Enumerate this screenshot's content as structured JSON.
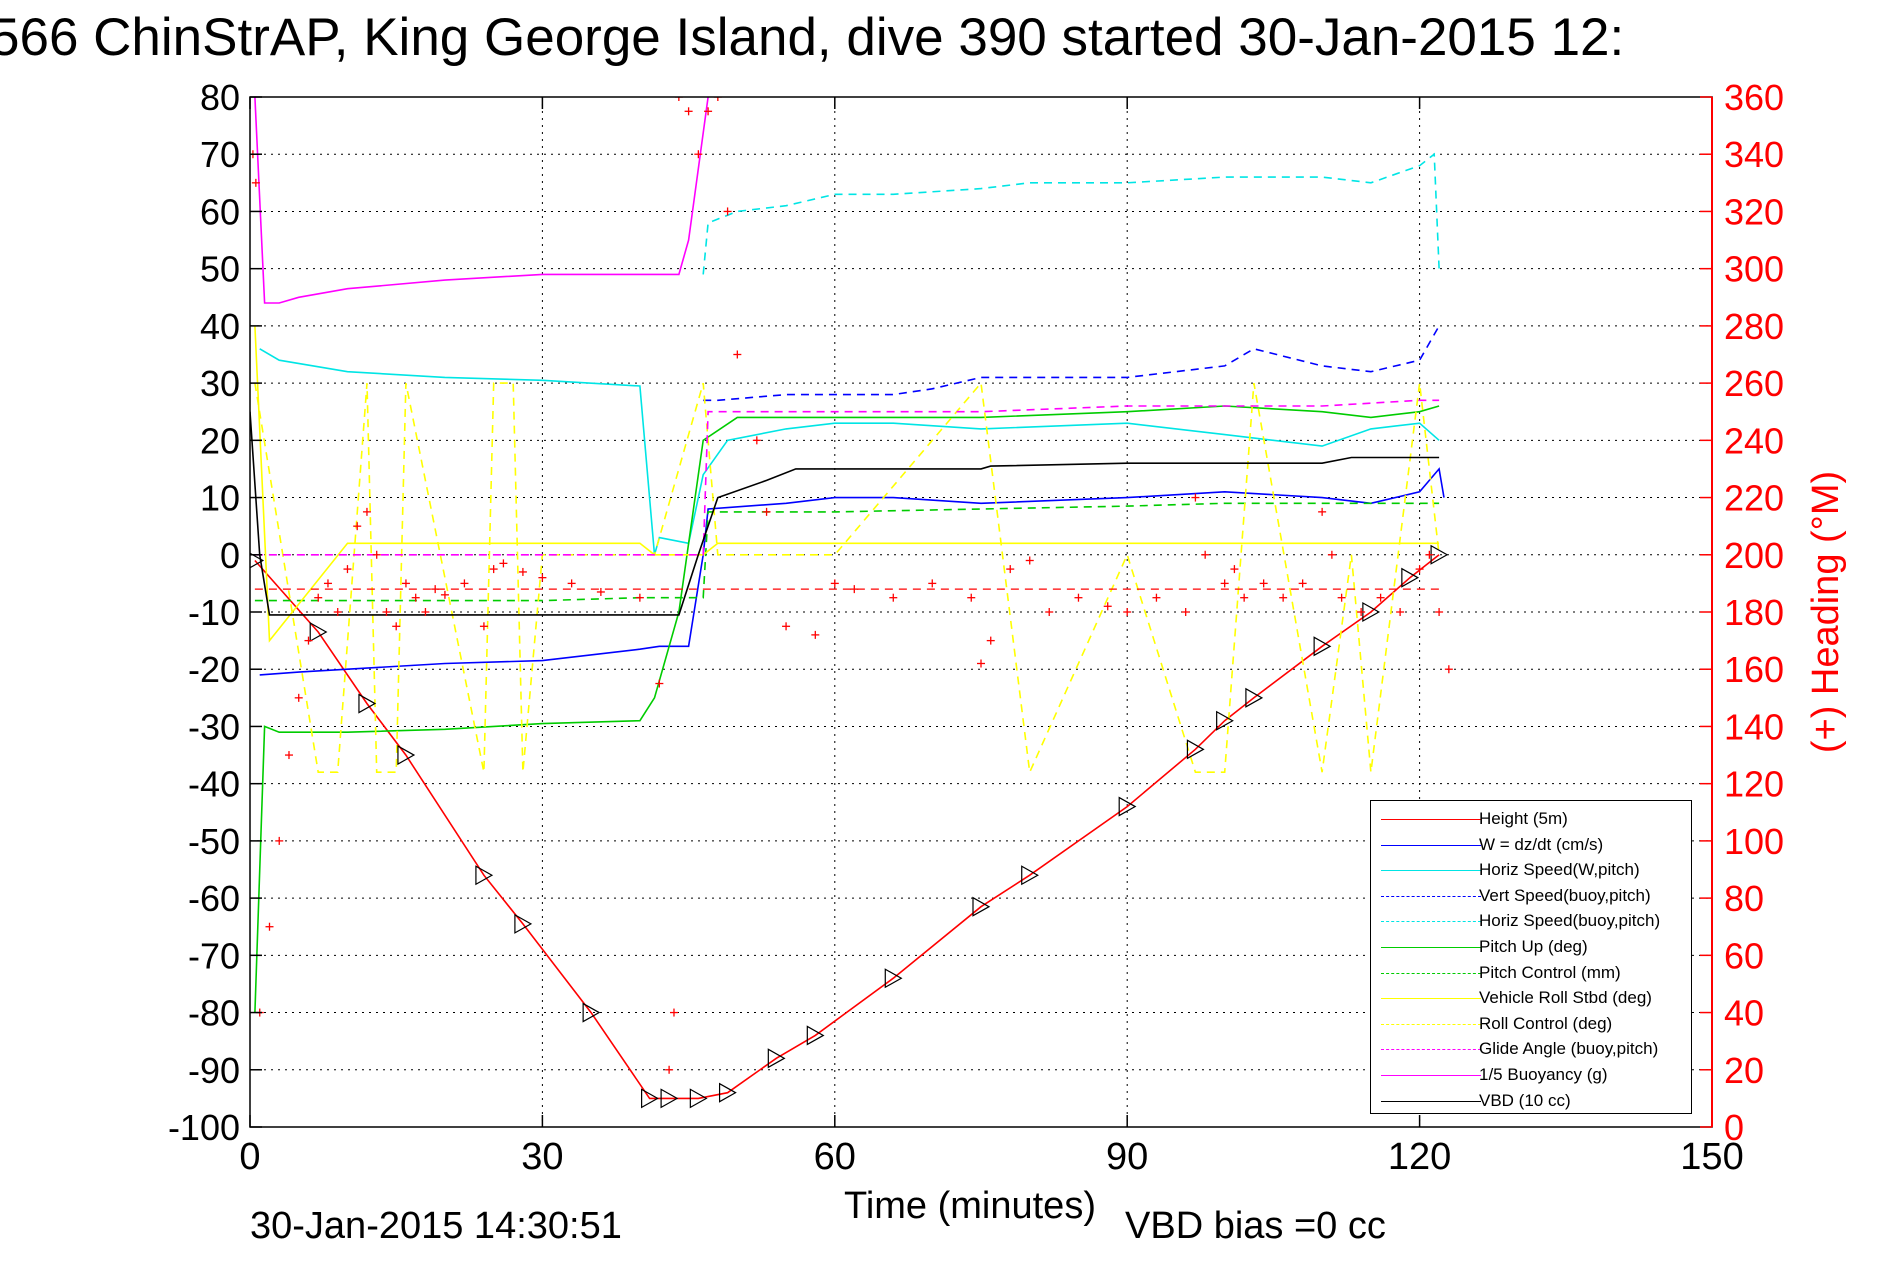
{
  "title": "566 ChinStrAP, King George Island, dive 390 started 30-Jan-2015 12:",
  "footer": {
    "timestamp": "30-Jan-2015 14:30:51",
    "vbd_bias": "VBD bias =0 cc"
  },
  "chart_data": {
    "type": "line",
    "title": "566 ChinStrAP, King George Island, dive 390 started 30-Jan-2015 12:",
    "xlabel": "Time (minutes)",
    "ylabel": "",
    "y2label": "(+) Heading (°M)",
    "xlim": [
      0,
      150
    ],
    "ylim": [
      -100,
      80
    ],
    "y2lim": [
      0,
      360
    ],
    "xticks": [
      0,
      30,
      60,
      90,
      120,
      150
    ],
    "yticks": [
      80,
      70,
      60,
      50,
      40,
      30,
      20,
      10,
      0,
      -10,
      -20,
      -30,
      -40,
      -50,
      -60,
      -70,
      -80,
      -90,
      -100
    ],
    "y2ticks": [
      360,
      340,
      320,
      300,
      280,
      260,
      240,
      220,
      200,
      180,
      160,
      140,
      120,
      100,
      80,
      60,
      40,
      20,
      0
    ],
    "grid": true,
    "legend_position": "bottom-right",
    "series": [
      {
        "name": "Height (5m)",
        "color": "#ff0000",
        "dash": "solid",
        "x": [
          0.5,
          7,
          12,
          16,
          24,
          28,
          35,
          41,
          43,
          46,
          49,
          54,
          58,
          66,
          75,
          80,
          90,
          97,
          100,
          103,
          110,
          115,
          119,
          122
        ],
        "y": [
          -1,
          -13.5,
          -26,
          -35,
          -56,
          -64.5,
          -80,
          -95,
          -95,
          -95,
          -94,
          -88,
          -84,
          -74,
          -61.5,
          -56,
          -44,
          -34,
          -29,
          -25,
          -16,
          -10,
          -4,
          0
        ]
      },
      {
        "name": "W = dz/dt (cm/s)",
        "color": "#0000ff",
        "dash": "solid",
        "x": [
          1,
          5,
          10,
          20,
          30,
          40,
          42,
          45,
          46.5,
          47,
          55,
          60,
          66,
          75,
          90,
          100,
          110,
          115,
          120,
          122,
          122.5
        ],
        "y": [
          -21,
          -20.5,
          -20,
          -19,
          -18.5,
          -16.5,
          -16,
          -16,
          0,
          8,
          9,
          10,
          10,
          9,
          10,
          11,
          10,
          9,
          11,
          15,
          10
        ]
      },
      {
        "name": "Horiz Speed(W,pitch)",
        "color": "#00e5e5",
        "dash": "solid",
        "x": [
          1,
          3,
          10,
          20,
          30,
          40,
          41.5,
          42,
          45,
          46.5,
          49,
          55,
          60,
          66,
          75,
          90,
          100,
          110,
          115,
          120,
          122
        ],
        "y": [
          36,
          34,
          32,
          31,
          30.5,
          29.5,
          0,
          3,
          2,
          14,
          20,
          22,
          23,
          23,
          22,
          23,
          21,
          19,
          22,
          23,
          20
        ]
      },
      {
        "name": "Vert Speed(buoy,pitch)",
        "color": "#0000ff",
        "dash": "dashed",
        "x": [
          46.5,
          48,
          55,
          60,
          66,
          70,
          75,
          80,
          90,
          100,
          103,
          110,
          115,
          120,
          122
        ],
        "y": [
          27,
          27,
          28,
          28,
          28,
          29,
          31,
          31,
          31,
          33,
          36,
          33,
          32,
          34,
          40
        ]
      },
      {
        "name": "Horiz Speed(buoy,pitch)",
        "color": "#00e5e5",
        "dash": "dashed",
        "x": [
          46.5,
          47,
          50,
          55,
          60,
          66,
          75,
          80,
          90,
          100,
          110,
          115,
          120,
          121.5,
          122
        ],
        "y": [
          49,
          58,
          60,
          61,
          63,
          63,
          64,
          65,
          65,
          66,
          66,
          65,
          68,
          70,
          50
        ]
      },
      {
        "name": "Pitch Up (deg)",
        "color": "#00cc00",
        "dash": "solid",
        "x": [
          0.5,
          1.5,
          3,
          10,
          20,
          30,
          40,
          41.5,
          44,
          46.5,
          50,
          55,
          60,
          66,
          75,
          90,
          100,
          110,
          115,
          120,
          122
        ],
        "y": [
          -80,
          -30,
          -31,
          -31,
          -30.5,
          -29.5,
          -29,
          -25,
          -10,
          20,
          24,
          24,
          24,
          24,
          24,
          25,
          26,
          25,
          24,
          25,
          26
        ]
      },
      {
        "name": "Pitch Control (mm)",
        "color": "#00cc00",
        "dash": "dashed",
        "x": [
          0.5,
          2,
          10,
          20,
          30,
          40,
          41.5,
          46.5,
          47,
          60,
          75,
          90,
          100,
          110,
          120,
          122
        ],
        "y": [
          -8,
          -8,
          -8,
          -8,
          -8,
          -7.5,
          -7.5,
          -7.5,
          7.5,
          7.5,
          8,
          8.5,
          9,
          9,
          9,
          9
        ]
      },
      {
        "name": "Vehicle Roll Stbd (deg)",
        "color": "#ffff00",
        "dash": "solid",
        "x": [
          0.5,
          2,
          10,
          20,
          30,
          40,
          41.5,
          46.5,
          48,
          60,
          75,
          90,
          100,
          110,
          120,
          122
        ],
        "y": [
          40,
          -15,
          2,
          2,
          2,
          2,
          0,
          0,
          2,
          2,
          2,
          2,
          2,
          2,
          2,
          2
        ]
      },
      {
        "name": "Roll Control (deg)",
        "color": "#ffff00",
        "dash": "dashed",
        "x": [
          0.5,
          7,
          9,
          12,
          13,
          15,
          16,
          24,
          25,
          27,
          28,
          30,
          41.5,
          46.5,
          48,
          60,
          75,
          80,
          90,
          97,
          100,
          103,
          110,
          113,
          115,
          120,
          122
        ],
        "y": [
          30,
          -38,
          -38,
          30,
          -38,
          -38,
          30,
          -38,
          30,
          30,
          -38,
          0,
          0,
          30,
          0,
          0,
          30,
          -38,
          0,
          -38,
          -38,
          30,
          -38,
          0,
          -38,
          30,
          0
        ]
      },
      {
        "name": "Glide Angle (buoy,pitch)",
        "color": "#ff00ff",
        "dash": "dashed",
        "x": [
          0.5,
          10,
          20,
          30,
          40,
          46.5,
          47,
          55,
          60,
          66,
          75,
          90,
          100,
          110,
          120,
          122
        ],
        "y": [
          0,
          0,
          0,
          0,
          0,
          0,
          25,
          25,
          25,
          25,
          25,
          26,
          26,
          26,
          27,
          27
        ]
      },
      {
        "name": "1/5 Buoyancy (g)",
        "color": "#ff00ff",
        "dash": "solid",
        "x": [
          0.5,
          1.5,
          3,
          5,
          10,
          20,
          30,
          40,
          44,
          45,
          47
        ],
        "y": [
          80,
          44,
          44,
          45,
          46.5,
          48,
          49,
          49,
          49,
          55,
          80
        ]
      },
      {
        "name": "VBD (10 cc)",
        "color": "#000000",
        "dash": "solid",
        "x": [
          0,
          1,
          2,
          10,
          20,
          30,
          44,
          46,
          48,
          53,
          56,
          60,
          75,
          76,
          90,
          100,
          110,
          113,
          122
        ],
        "y": [
          25,
          0,
          -10.5,
          -10.5,
          -10.5,
          -10.5,
          -10.5,
          0,
          10,
          13,
          15,
          15,
          15,
          15.5,
          16,
          16,
          16,
          17,
          17
        ]
      }
    ],
    "heading_series": {
      "name": "(+) Heading (°M)",
      "marker": "+",
      "color": "#ff0000",
      "x": [
        0.3,
        0.6,
        1,
        2,
        3,
        4,
        5,
        6,
        7,
        8,
        9,
        10,
        11,
        12,
        13,
        14,
        15,
        16,
        17,
        18,
        19,
        20,
        22,
        24,
        25,
        26,
        28,
        30,
        33,
        36,
        40,
        42,
        43,
        43.5,
        44,
        45,
        46,
        47,
        48,
        49,
        50,
        52,
        53,
        55,
        58,
        60,
        62,
        66,
        70,
        74,
        75,
        76,
        78,
        80,
        82,
        85,
        88,
        90,
        93,
        96,
        97,
        98,
        100,
        101,
        102,
        104,
        106,
        108,
        110,
        111,
        112,
        114,
        116,
        118,
        120,
        121,
        122,
        123
      ],
      "y": [
        340,
        330,
        40,
        70,
        100,
        130,
        150,
        170,
        185,
        190,
        180,
        195,
        210,
        215,
        200,
        180,
        175,
        190,
        185,
        180,
        188,
        186,
        190,
        175,
        195,
        197,
        194,
        192,
        190,
        187,
        185,
        155,
        20,
        40,
        360,
        355,
        340,
        355,
        360,
        320,
        270,
        240,
        215,
        175,
        172,
        190,
        188,
        185,
        190,
        185,
        162,
        170,
        195,
        198,
        180,
        185,
        182,
        180,
        185,
        180,
        220,
        200,
        190,
        195,
        185,
        190,
        185,
        190,
        215,
        200,
        185,
        180,
        185,
        180,
        195,
        200,
        180,
        160
      ]
    }
  }
}
